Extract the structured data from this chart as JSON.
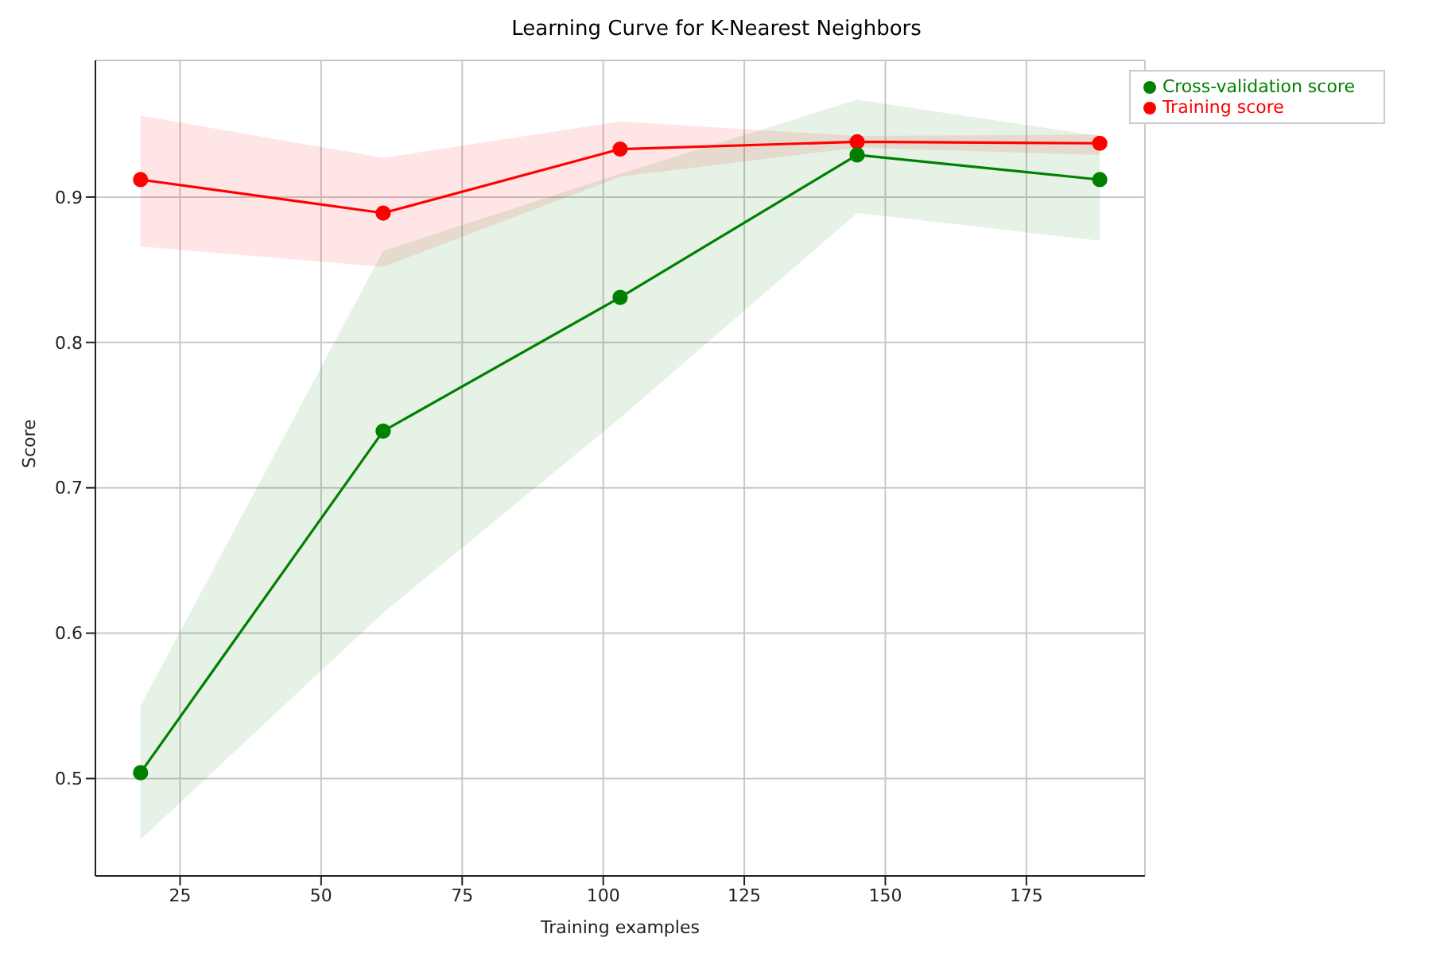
{
  "chart_data": {
    "type": "line",
    "title": "Learning Curve for K-Nearest Neighbors",
    "xlabel": "Training examples",
    "ylabel": "Score",
    "x": [
      18,
      61,
      103,
      145,
      188
    ],
    "series": [
      {
        "name": "Training score",
        "color": "#ff0000",
        "values": [
          0.912,
          0.889,
          0.933,
          0.938,
          0.937
        ],
        "lower": [
          0.866,
          0.852,
          0.914,
          0.934,
          0.929
        ],
        "upper": [
          0.956,
          0.927,
          0.952,
          0.942,
          0.943
        ]
      },
      {
        "name": "Cross-validation score",
        "color": "#008000",
        "values": [
          0.504,
          0.739,
          0.831,
          0.929,
          0.912
        ],
        "lower": [
          0.458,
          0.614,
          0.748,
          0.889,
          0.87
        ],
        "upper": [
          0.55,
          0.863,
          0.916,
          0.967,
          0.942
        ]
      }
    ],
    "xlim": [
      10,
      196
    ],
    "xticks": [
      25,
      50,
      75,
      100,
      125,
      150,
      175
    ],
    "ylim": [
      0.433,
      0.994
    ],
    "yticks": [
      0.5,
      0.6,
      0.7,
      0.8,
      0.9
    ],
    "grid": true,
    "legend": "top right",
    "marker": "circle",
    "line_style": "solid"
  }
}
